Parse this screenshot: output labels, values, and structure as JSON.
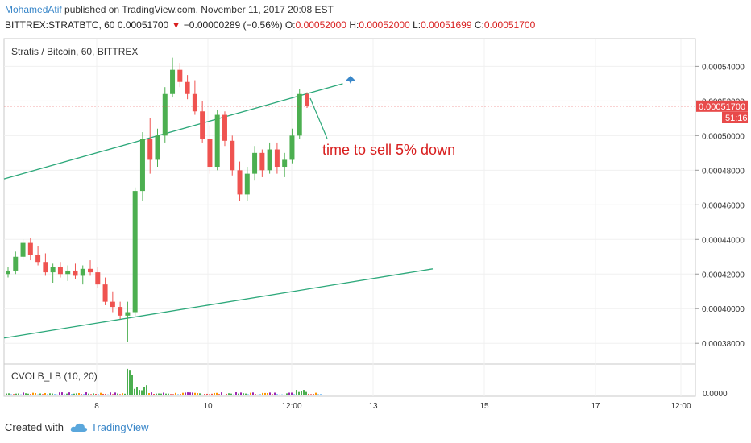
{
  "header": {
    "author": "MohamedAtif",
    "published": "published on TradingView.com, November 11, 2017 20:08 EST",
    "symbol": "BITTREX:STRATBTC, 60",
    "last": "0.00051700",
    "arrow": "▼",
    "change": "−0.00000289 (−0.56%)",
    "o_label": "O:",
    "o_value": "0.00052000",
    "h_label": "H:",
    "h_value": "0.00052000",
    "l_label": "L:",
    "l_value": "0.00051699",
    "c_label": "C:",
    "c_value": "0.00051700"
  },
  "chart_data": {
    "type": "candlestick",
    "title": "Stratis / Bitcoin, 60, BITTREX",
    "price_axis": {
      "ticks": [
        "0.00054000",
        "0.00052000",
        "0.00050000",
        "0.00048000",
        "0.00046000",
        "0.00044000",
        "0.00042000",
        "0.00040000",
        "0.00038000"
      ],
      "ylim": [
        0.000368,
        0.000556
      ]
    },
    "time_axis": {
      "ticks": [
        "8",
        "10",
        "12:00",
        "13",
        "15",
        "17",
        "12:00"
      ]
    },
    "last_price_label": "0.00051700",
    "countdown_label": "51:16",
    "annotation": "time to sell  5% down",
    "candles_approx": [
      [
        0.00042,
        0.000424,
        0.000418,
        0.000422
      ],
      [
        0.000422,
        0.000433,
        0.00042,
        0.00043
      ],
      [
        0.00043,
        0.00044,
        0.000428,
        0.000438
      ],
      [
        0.000438,
        0.000441,
        0.000428,
        0.000431
      ],
      [
        0.000431,
        0.000436,
        0.000425,
        0.000427
      ],
      [
        0.000427,
        0.000432,
        0.000419,
        0.000421
      ],
      [
        0.000421,
        0.000426,
        0.000415,
        0.000424
      ],
      [
        0.000424,
        0.000427,
        0.000418,
        0.00042
      ],
      [
        0.00042,
        0.000425,
        0.000416,
        0.000422
      ],
      [
        0.000422,
        0.000426,
        0.000417,
        0.000419
      ],
      [
        0.000419,
        0.000425,
        0.000414,
        0.000423
      ],
      [
        0.000423,
        0.000428,
        0.000419,
        0.000421
      ],
      [
        0.000421,
        0.000424,
        0.000412,
        0.000414
      ],
      [
        0.000414,
        0.000418,
        0.000402,
        0.000404
      ],
      [
        0.000404,
        0.00041,
        0.000398,
        0.000401
      ],
      [
        0.000401,
        0.000404,
        0.000394,
        0.000396
      ],
      [
        0.000396,
        0.000404,
        0.000381,
        0.000398
      ],
      [
        0.000398,
        0.00047,
        0.000396,
        0.000468
      ],
      [
        0.000468,
        0.000502,
        0.000462,
        0.000498
      ],
      [
        0.000498,
        0.00051,
        0.000478,
        0.000486
      ],
      [
        0.000486,
        0.000504,
        0.000482,
        0.0005
      ],
      [
        0.0005,
        0.000528,
        0.000496,
        0.000524
      ],
      [
        0.000524,
        0.000545,
        0.000522,
        0.000538
      ],
      [
        0.000538,
        0.000542,
        0.000528,
        0.000531
      ],
      [
        0.000531,
        0.000535,
        0.000521,
        0.000524
      ],
      [
        0.000524,
        0.000532,
        0.000512,
        0.000514
      ],
      [
        0.000514,
        0.00052,
        0.000496,
        0.000498
      ],
      [
        0.000498,
        0.000506,
        0.000478,
        0.000482
      ],
      [
        0.000482,
        0.000515,
        0.00048,
        0.000512
      ],
      [
        0.000512,
        0.000514,
        0.000494,
        0.000497
      ],
      [
        0.000497,
        0.0005,
        0.000477,
        0.00048
      ],
      [
        0.00048,
        0.000485,
        0.000462,
        0.000466
      ],
      [
        0.000466,
        0.000482,
        0.000462,
        0.000478
      ],
      [
        0.000478,
        0.000494,
        0.000474,
        0.00049
      ],
      [
        0.00049,
        0.000492,
        0.000476,
        0.00048
      ],
      [
        0.00048,
        0.000496,
        0.000478,
        0.000492
      ],
      [
        0.000492,
        0.000496,
        0.000478,
        0.000482
      ],
      [
        0.000482,
        0.00049,
        0.000476,
        0.000486
      ],
      [
        0.000486,
        0.000504,
        0.000484,
        0.0005
      ],
      [
        0.0005,
        0.000527,
        0.000498,
        0.000524
      ],
      [
        0.000524,
        0.000525,
        0.000516,
        0.000517
      ]
    ],
    "trendlines": [
      {
        "name": "upper",
        "from": [
          0.0,
          0.000475
        ],
        "to": [
          0.49,
          0.00053
        ]
      },
      {
        "name": "lower",
        "from": [
          0.0,
          0.000383
        ],
        "to": [
          0.62,
          0.000423
        ]
      }
    ]
  },
  "indicator": {
    "label": "CVOLB_LB (10, 20)",
    "axis_label": "0.0000"
  },
  "footer": {
    "created": "Created with",
    "brand": "TradingView"
  },
  "colors": {
    "up": "#4caf50",
    "down": "#ef5350",
    "line": "#2ca87a",
    "accent": "#3a87c9",
    "price_tag": "#e84a4a"
  }
}
